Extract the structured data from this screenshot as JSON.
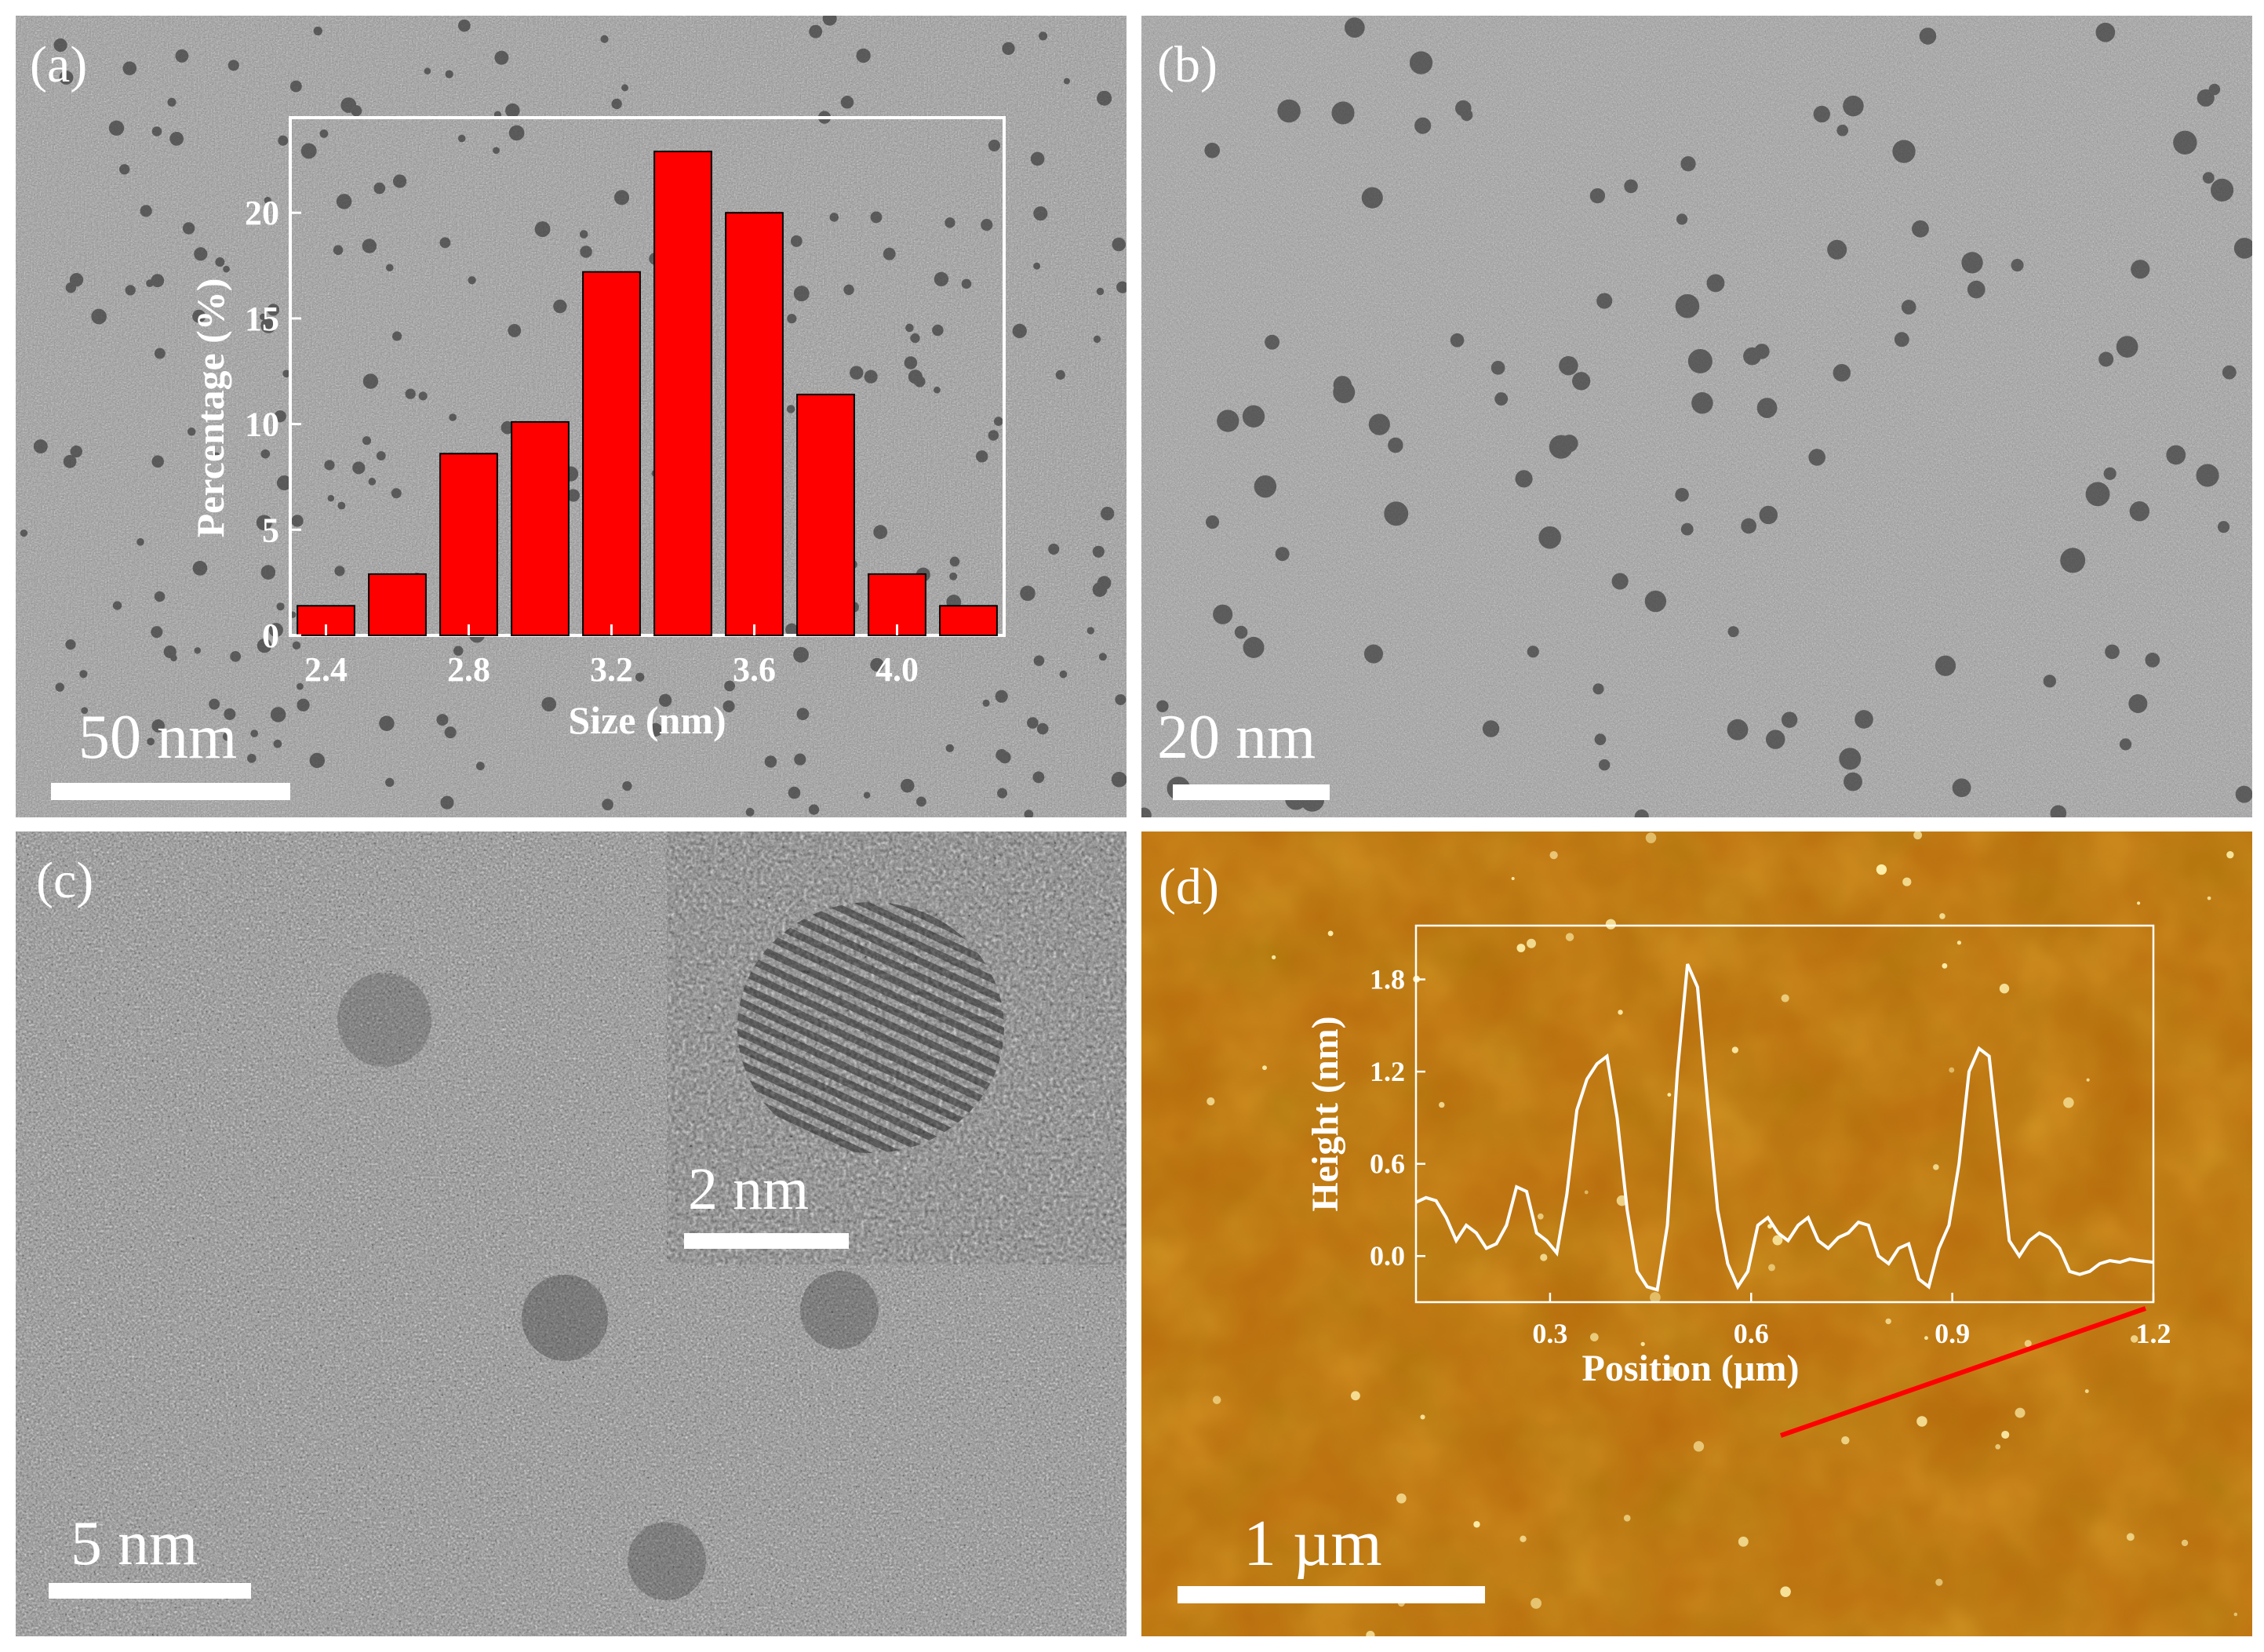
{
  "panels": {
    "a": {
      "label": "(a)",
      "scalebar": "50 nm"
    },
    "b": {
      "label": "(b)",
      "scalebar": "20 nm"
    },
    "c": {
      "label": "(c)",
      "scalebar": "5 nm",
      "inset_scalebar": "2 nm"
    },
    "d": {
      "label": "(d)",
      "scalebar": "1 µm"
    }
  },
  "colors": {
    "bar_fill": "#ff0000",
    "afm_line": "#ff0000",
    "afm_bg": "#b8690a",
    "axis": "#ffffff"
  },
  "chart_data": [
    {
      "type": "bar",
      "panel": "a",
      "xlabel": "Size (nm)",
      "ylabel": "Percentage (%)",
      "categories": [
        2.4,
        2.6,
        2.8,
        3.0,
        3.2,
        3.4,
        3.6,
        3.8,
        4.0,
        4.2
      ],
      "values": [
        1.4,
        2.9,
        8.6,
        10.1,
        17.2,
        22.9,
        20.0,
        11.4,
        2.9,
        1.4
      ],
      "xlim": [
        2.3,
        4.3
      ],
      "ylim": [
        0,
        24.5
      ],
      "xticks": [
        "2.4",
        "2.8",
        "3.2",
        "3.6",
        "4.0"
      ],
      "yticks": [
        "0",
        "5",
        "10",
        "15",
        "20"
      ]
    },
    {
      "type": "line",
      "panel": "d",
      "xlabel": "Position (µm)",
      "ylabel": "Height (nm)",
      "xlim": [
        0.1,
        1.2
      ],
      "ylim": [
        -0.3,
        2.15
      ],
      "xticks": [
        "0.3",
        "0.6",
        "0.9",
        "1.2"
      ],
      "yticks": [
        "0.0",
        "0.6",
        "1.2",
        "1.8"
      ],
      "x": [
        0.1,
        0.115,
        0.13,
        0.145,
        0.16,
        0.175,
        0.19,
        0.205,
        0.22,
        0.235,
        0.25,
        0.265,
        0.28,
        0.295,
        0.31,
        0.325,
        0.34,
        0.355,
        0.37,
        0.385,
        0.4,
        0.415,
        0.43,
        0.445,
        0.46,
        0.475,
        0.49,
        0.505,
        0.52,
        0.535,
        0.55,
        0.565,
        0.58,
        0.595,
        0.61,
        0.625,
        0.64,
        0.655,
        0.67,
        0.685,
        0.7,
        0.715,
        0.73,
        0.745,
        0.76,
        0.775,
        0.79,
        0.805,
        0.82,
        0.835,
        0.85,
        0.865,
        0.88,
        0.895,
        0.91,
        0.925,
        0.94,
        0.955,
        0.97,
        0.985,
        1.0,
        1.015,
        1.03,
        1.045,
        1.06,
        1.075,
        1.09,
        1.105,
        1.12,
        1.135,
        1.15,
        1.165,
        1.18,
        1.2
      ],
      "y": [
        0.35,
        0.38,
        0.36,
        0.25,
        0.1,
        0.2,
        0.15,
        0.05,
        0.08,
        0.2,
        0.45,
        0.42,
        0.15,
        0.1,
        0.02,
        0.4,
        0.95,
        1.15,
        1.25,
        1.3,
        0.9,
        0.3,
        -0.1,
        -0.2,
        -0.22,
        0.2,
        1.2,
        1.9,
        1.75,
        1.0,
        0.3,
        -0.05,
        -0.2,
        -0.1,
        0.2,
        0.25,
        0.15,
        0.1,
        0.2,
        0.25,
        0.1,
        0.05,
        0.12,
        0.15,
        0.22,
        0.2,
        0.0,
        -0.05,
        0.05,
        0.08,
        -0.15,
        -0.2,
        0.05,
        0.2,
        0.6,
        1.2,
        1.35,
        1.3,
        0.7,
        0.1,
        0.0,
        0.1,
        0.15,
        0.12,
        0.05,
        -0.1,
        -0.12,
        -0.1,
        -0.05,
        -0.03,
        -0.04,
        -0.02,
        -0.03,
        -0.04
      ]
    }
  ]
}
